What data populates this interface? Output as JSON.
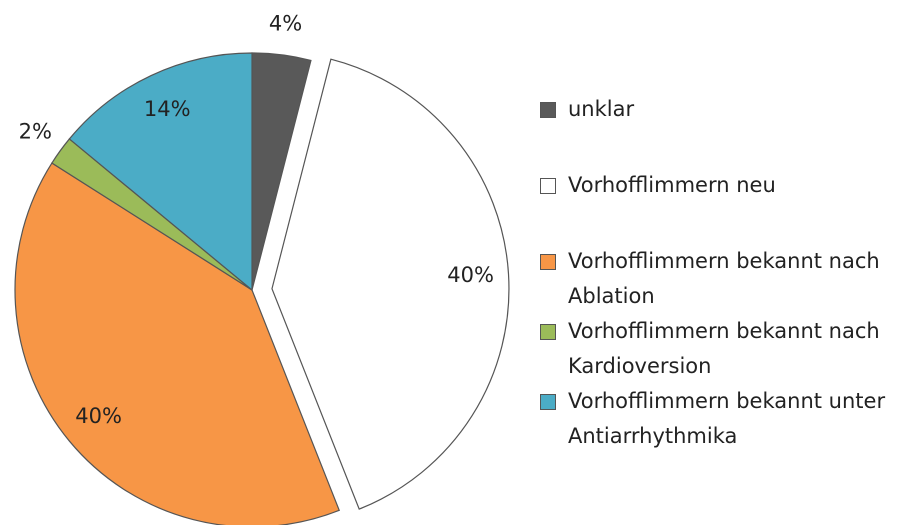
{
  "chart_data": {
    "type": "pie",
    "categories": [
      "unklar",
      "Vorhofflimmern neu",
      "Vorhofflimmern bekannt nach Ablation",
      "Vorhofflimmern bekannt nach Kardioversion",
      "Vorhofflimmern bekannt unter Antiarrhythmika"
    ],
    "values": [
      4,
      40,
      40,
      2,
      14
    ],
    "value_labels": [
      "4%",
      "40%",
      "40%",
      "2%",
      "14%"
    ],
    "colors": [
      "#595959",
      "#ffffff",
      "#f79646",
      "#9bbb59",
      "#4bacc6"
    ],
    "exploded": [
      false,
      true,
      false,
      false,
      false
    ],
    "legend": "right"
  }
}
